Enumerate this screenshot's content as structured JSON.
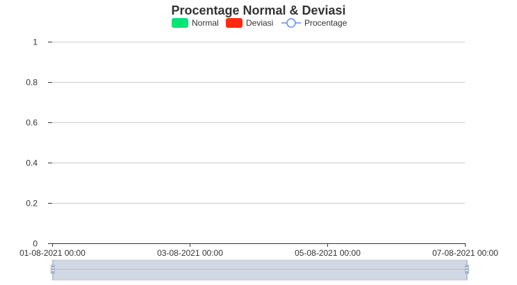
{
  "chart_data": {
    "type": "bar",
    "title": "Procentage Normal & Deviasi",
    "legend": {
      "position": "top-center",
      "items": [
        {
          "name": "Normal",
          "shape": "bar",
          "color": "#00e676"
        },
        {
          "name": "Deviasi",
          "shape": "bar",
          "color": "#ff2a0e"
        },
        {
          "name": "Procentage",
          "shape": "line",
          "color": "#5b8ff9"
        }
      ]
    },
    "x": {
      "ticks": [
        "01-08-2021 00:00",
        "03-08-2021 00:00",
        "05-08-2021 00:00",
        "07-08-2021 00:00"
      ]
    },
    "y": {
      "ylim": [
        0,
        1
      ],
      "ticks": [
        "0",
        "0.2",
        "0.4",
        "0.6",
        "0.8",
        "1"
      ],
      "tick_values": [
        0,
        0.2,
        0.4,
        0.6,
        0.8,
        1
      ]
    },
    "series": [
      {
        "name": "Normal",
        "values": []
      },
      {
        "name": "Deviasi",
        "values": []
      },
      {
        "name": "Procentage",
        "values": []
      }
    ],
    "grid": true,
    "data_zoom": {
      "start": 0,
      "end": 1
    }
  },
  "colors": {
    "grid": "#cccccc",
    "axis": "#333333",
    "zoom_fill": "#d1d8e3",
    "zoom_handle": "#a6b6cc"
  }
}
